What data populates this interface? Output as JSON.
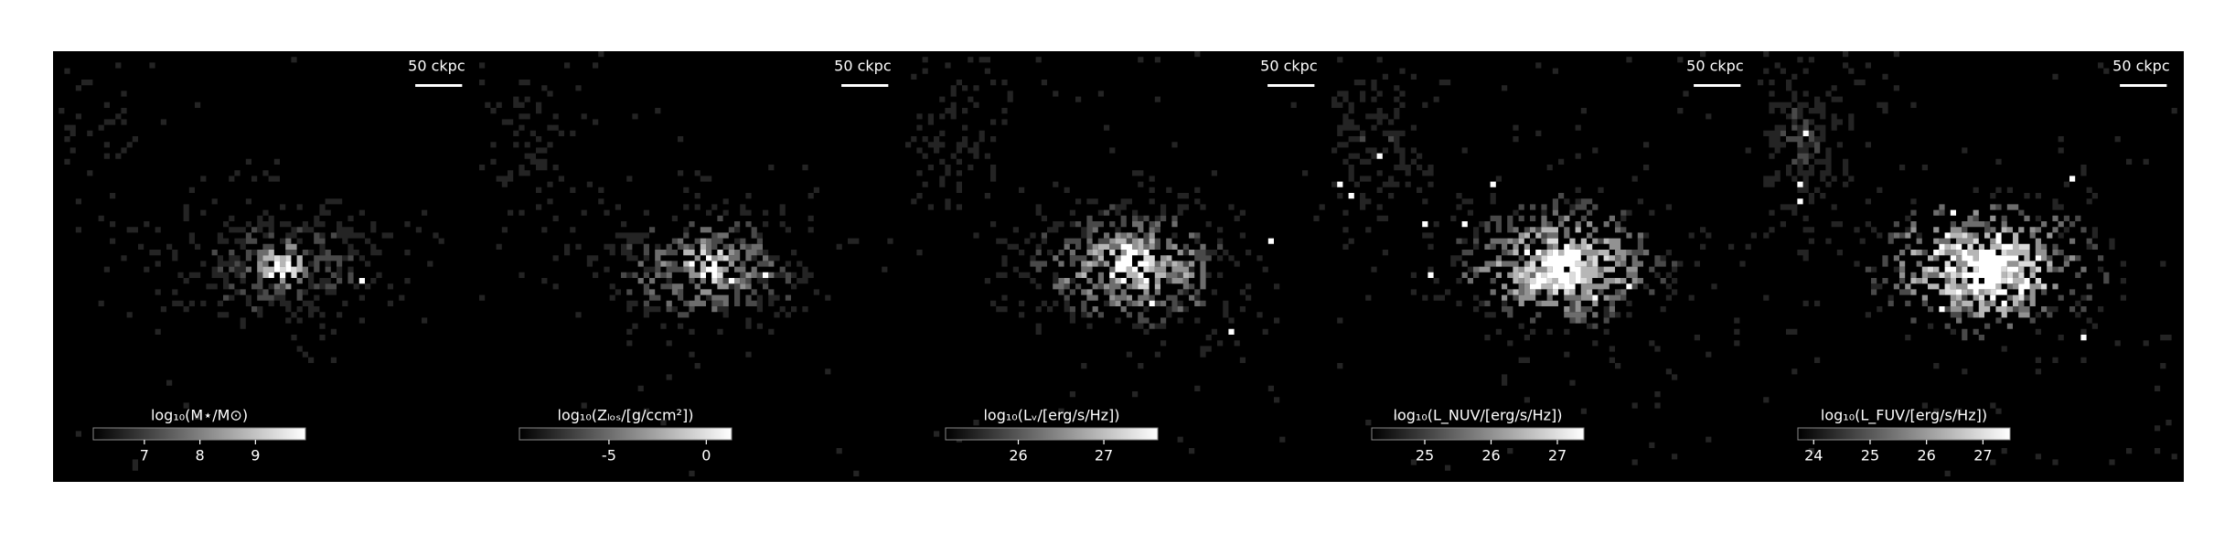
{
  "chart_data": [
    {
      "type": "image",
      "scalebar": "50 ckpc",
      "colorbar_label": "log₁₀(M⋆/M⊙)",
      "clim": [
        6.08,
        9.9
      ],
      "cticks": [
        7,
        8,
        9
      ]
    },
    {
      "type": "image",
      "scalebar": "50 ckpc",
      "colorbar_label": "log₁₀(Zₗₒₛ/[g/ccm²])",
      "clim": [
        -9.6,
        1.3
      ],
      "cticks": [
        -5,
        0
      ]
    },
    {
      "type": "image",
      "scalebar": "50 ckpc",
      "colorbar_label": "log₁₀(Lᵥ/[erg/s/Hz])",
      "clim": [
        25.15,
        27.63
      ],
      "cticks": [
        26,
        27
      ]
    },
    {
      "type": "image",
      "scalebar": "50 ckpc",
      "colorbar_label": "log₁₀(L_NUV/[erg/s/Hz])",
      "clim": [
        24.2,
        27.4
      ],
      "cticks": [
        25,
        26,
        27
      ]
    },
    {
      "type": "image",
      "scalebar": "50 ckpc",
      "colorbar_label": "log₁₀(L_FUV/[erg/s/Hz])",
      "clim": [
        23.72,
        27.48
      ],
      "cticks": [
        24,
        25,
        26,
        27
      ]
    }
  ]
}
